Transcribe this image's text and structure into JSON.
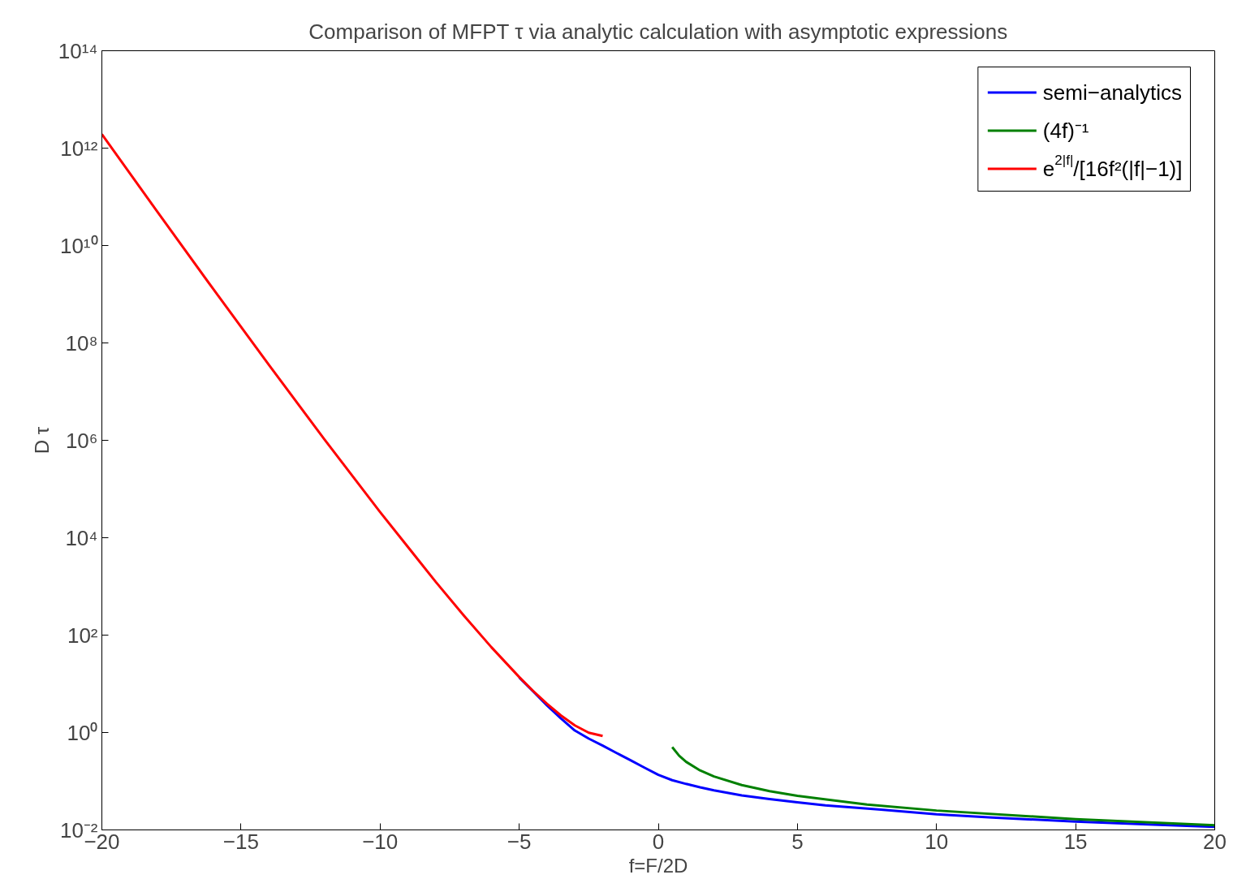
{
  "chart_data": {
    "type": "line",
    "title": "Comparison of MFPT τ via analytic calculation with asymptotic expressions",
    "xlabel": "f=F/2D",
    "ylabel": "D τ",
    "log": "y",
    "grid": false,
    "legend": "top right",
    "marker": "none",
    "line_style": "solid",
    "xlim": [
      -20,
      20
    ],
    "ylim": [
      0.01,
      100000000000000
    ],
    "xticks": [
      {
        "value": -20,
        "label": "−20"
      },
      {
        "value": -15,
        "label": "−15"
      },
      {
        "value": -10,
        "label": "−10"
      },
      {
        "value": -5,
        "label": "−5"
      },
      0,
      5,
      10,
      15,
      20
    ],
    "yticks": [
      {
        "value": 0.01,
        "label": "10⁻²"
      },
      {
        "value": 1,
        "label": "10⁰"
      },
      {
        "value": 100,
        "label": "10²"
      },
      {
        "value": 10000,
        "label": "10⁴"
      },
      {
        "value": 1000000,
        "label": "10⁶"
      },
      {
        "value": 100000000,
        "label": "10⁸"
      },
      {
        "value": 10000000000,
        "label": "10¹⁰"
      },
      {
        "value": 1000000000000,
        "label": "10¹²"
      },
      {
        "value": 100000000000000,
        "label": "10¹⁴"
      }
    ],
    "series": [
      {
        "name": "semi−analytics",
        "color": "#0000ff",
        "x": [
          -5,
          -4.5,
          -4,
          -3.5,
          -3,
          -2.5,
          -2,
          -1.5,
          -1,
          -0.5,
          0,
          0.5,
          1,
          1.5,
          2,
          3,
          4,
          5,
          6,
          8,
          10,
          12,
          15,
          18,
          20
        ],
        "values": [
          13.5,
          7.0,
          3.6,
          1.95,
          1.1,
          0.75,
          0.54,
          0.38,
          0.27,
          0.19,
          0.135,
          0.105,
          0.088,
          0.075,
          0.065,
          0.051,
          0.043,
          0.037,
          0.032,
          0.026,
          0.021,
          0.018,
          0.0148,
          0.0127,
          0.0115
        ]
      },
      {
        "name": "(4f)⁻¹",
        "color": "#008000",
        "x": [
          0.5,
          0.75,
          1,
          1.5,
          2,
          3,
          4,
          5,
          7.5,
          10,
          15,
          20
        ],
        "values": [
          0.5,
          0.333,
          0.25,
          0.1667,
          0.125,
          0.0833,
          0.0625,
          0.05,
          0.0333,
          0.025,
          0.01667,
          0.0125
        ]
      },
      {
        "name": "e$^{2|f|}$/[16f²(|f|−1)]",
        "color": "#ff0000",
        "x": [
          -20,
          -18,
          -16,
          -14,
          -12,
          -10,
          -8,
          -7,
          -6,
          -5,
          -4.5,
          -4,
          -3.5,
          -3,
          -2.5,
          -2
        ],
        "values": [
          1930000000000,
          48900000000,
          1285000000,
          35500000,
          1045000,
          33700,
          1240,
          256,
          56.5,
          13.8,
          7.15,
          3.88,
          2.24,
          1.4,
          0.99,
          0.85
        ]
      }
    ]
  }
}
